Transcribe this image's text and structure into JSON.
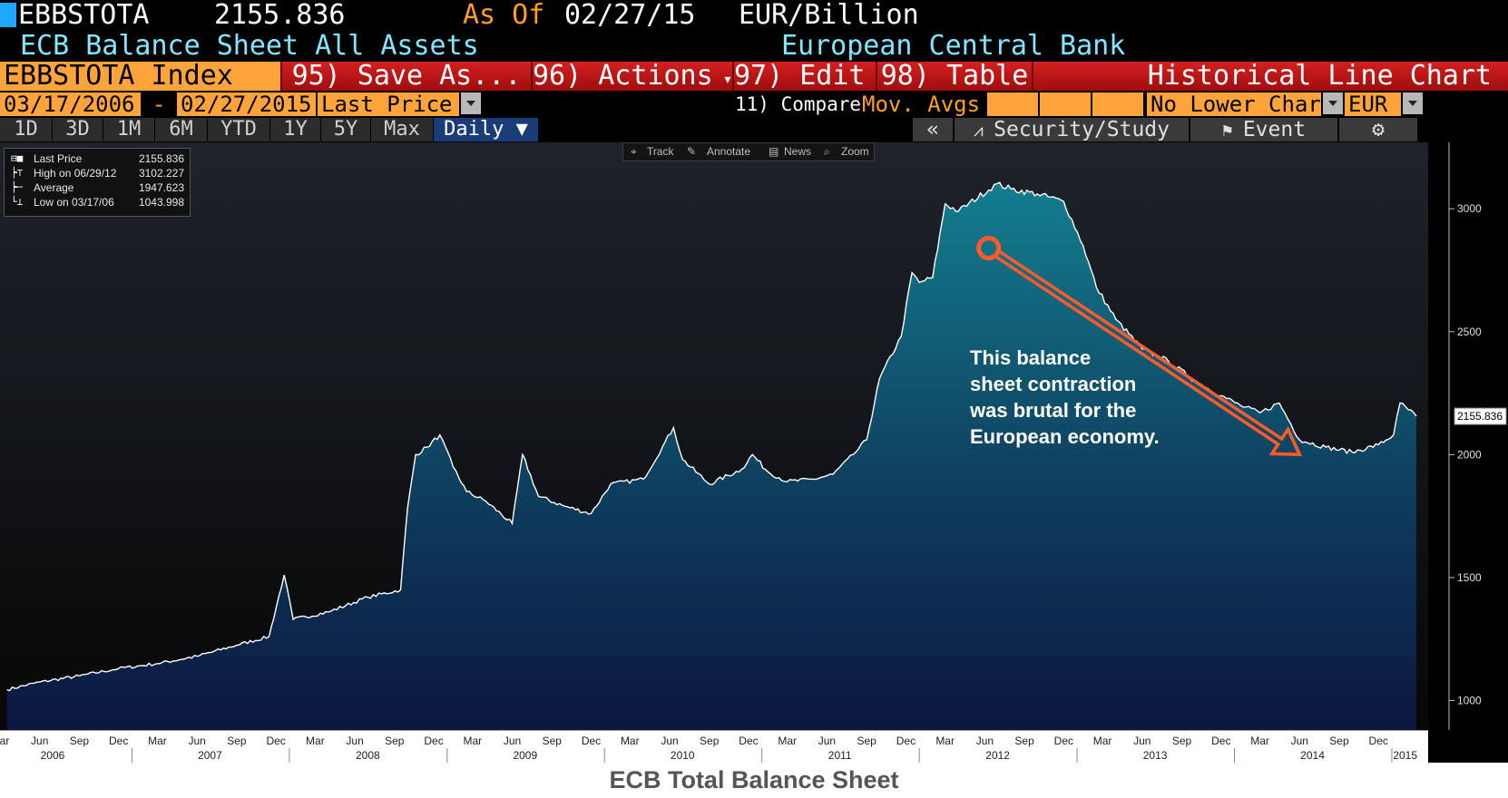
{
  "header": {
    "ticker": "EBBSTOTA",
    "last_value": "2155.836",
    "as_of_label": "As Of",
    "as_of_date": "02/27/15",
    "units": "EUR/Billion",
    "description": "ECB Balance Sheet All Assets",
    "source": "European Central Bank"
  },
  "menu": {
    "index_label": "EBBSTOTA Index",
    "save_as": "95) Save As...",
    "actions": "96) Actions",
    "edit": "97) Edit",
    "table": "98) Table",
    "chart_type": "Historical Line Chart"
  },
  "controls": {
    "start_date": "03/17/2006",
    "dash": "-",
    "end_date": "02/27/2015",
    "field": "Last Price",
    "compare_label": "11) Compare",
    "mov_avgs": "Mov. Avgs",
    "lower_chart": "No Lower Chart",
    "currency": "EUR"
  },
  "tabs": [
    "1D",
    "3D",
    "1M",
    "6M",
    "YTD",
    "1Y",
    "5Y",
    "Max"
  ],
  "frequency": "Daily",
  "right_tools": {
    "collapse": "«",
    "security_study": "Security/Study",
    "event": "Event"
  },
  "chart_toolbar": [
    "Track",
    "Annotate",
    "News",
    "Zoom"
  ],
  "legend": [
    {
      "label": "Last Price",
      "value": "2155.836"
    },
    {
      "label": "High on 06/29/12",
      "value": "3102.227"
    },
    {
      "label": "Average",
      "value": "1947.623"
    },
    {
      "label": "Low on 03/17/06",
      "value": "1043.998"
    }
  ],
  "annotation": [
    "This balance",
    "sheet contraction",
    "was brutal for the",
    "European economy."
  ],
  "caption": "ECB Total Balance Sheet",
  "colors": {
    "accent_orange": "#ff9f1a",
    "menu_red": "#d42020",
    "cursor_blue": "#1ea7ff",
    "arrow": "#ff5a2a",
    "area_top": "#137e90",
    "area_bottom": "#0b1640"
  },
  "chart_data": {
    "type": "area",
    "ylim": [
      880,
      3270
    ],
    "yticks": [
      1000,
      1500,
      2000,
      2500,
      3000
    ],
    "last_value_label": "2155.836",
    "last_value": 2155.836,
    "x_range": [
      "2006-03-01",
      "2015-03-01"
    ],
    "x_month_ticks": [
      {
        "date": "2006-03",
        "label": "Mar"
      },
      {
        "date": "2006-06",
        "label": "Jun"
      },
      {
        "date": "2006-09",
        "label": "Sep"
      },
      {
        "date": "2006-12",
        "label": "Dec"
      },
      {
        "date": "2007-03",
        "label": "Mar"
      },
      {
        "date": "2007-06",
        "label": "Jun"
      },
      {
        "date": "2007-09",
        "label": "Sep"
      },
      {
        "date": "2007-12",
        "label": "Dec"
      },
      {
        "date": "2008-03",
        "label": "Mar"
      },
      {
        "date": "2008-06",
        "label": "Jun"
      },
      {
        "date": "2008-09",
        "label": "Sep"
      },
      {
        "date": "2008-12",
        "label": "Dec"
      },
      {
        "date": "2009-03",
        "label": "Mar"
      },
      {
        "date": "2009-06",
        "label": "Jun"
      },
      {
        "date": "2009-09",
        "label": "Sep"
      },
      {
        "date": "2009-12",
        "label": "Dec"
      },
      {
        "date": "2010-03",
        "label": "Mar"
      },
      {
        "date": "2010-06",
        "label": "Jun"
      },
      {
        "date": "2010-09",
        "label": "Sep"
      },
      {
        "date": "2010-12",
        "label": "Dec"
      },
      {
        "date": "2011-03",
        "label": "Mar"
      },
      {
        "date": "2011-06",
        "label": "Jun"
      },
      {
        "date": "2011-09",
        "label": "Sep"
      },
      {
        "date": "2011-12",
        "label": "Dec"
      },
      {
        "date": "2012-03",
        "label": "Mar"
      },
      {
        "date": "2012-06",
        "label": "Jun"
      },
      {
        "date": "2012-09",
        "label": "Sep"
      },
      {
        "date": "2012-12",
        "label": "Dec"
      },
      {
        "date": "2013-03",
        "label": "Mar"
      },
      {
        "date": "2013-06",
        "label": "Jun"
      },
      {
        "date": "2013-09",
        "label": "Sep"
      },
      {
        "date": "2013-12",
        "label": "Dec"
      },
      {
        "date": "2014-03",
        "label": "Mar"
      },
      {
        "date": "2014-06",
        "label": "Jun"
      },
      {
        "date": "2014-09",
        "label": "Sep"
      },
      {
        "date": "2014-12",
        "label": "Dec"
      }
    ],
    "x_year_labels": [
      {
        "date": "2006-07",
        "label": "2006"
      },
      {
        "date": "2007-07",
        "label": "2007"
      },
      {
        "date": "2008-07",
        "label": "2008"
      },
      {
        "date": "2009-07",
        "label": "2009"
      },
      {
        "date": "2010-07",
        "label": "2010"
      },
      {
        "date": "2011-07",
        "label": "2011"
      },
      {
        "date": "2012-07",
        "label": "2012"
      },
      {
        "date": "2013-07",
        "label": "2013"
      },
      {
        "date": "2014-07",
        "label": "2014"
      },
      {
        "date": "2015-02",
        "label": "2015"
      }
    ],
    "x_year_separators": [
      "2007-01",
      "2008-01",
      "2009-01",
      "2010-01",
      "2011-01",
      "2012-01",
      "2013-01",
      "2014-01",
      "2015-01"
    ],
    "series": [
      {
        "points": [
          [
            "2006-03-17",
            1044
          ],
          [
            "2006-06-01",
            1075
          ],
          [
            "2006-09-01",
            1100
          ],
          [
            "2006-12-01",
            1130
          ],
          [
            "2007-03-01",
            1150
          ],
          [
            "2007-06-01",
            1180
          ],
          [
            "2007-09-01",
            1225
          ],
          [
            "2007-11-15",
            1260
          ],
          [
            "2007-12-20",
            1510
          ],
          [
            "2008-01-10",
            1330
          ],
          [
            "2008-04-01",
            1360
          ],
          [
            "2008-07-01",
            1420
          ],
          [
            "2008-09-15",
            1450
          ],
          [
            "2008-10-01",
            1780
          ],
          [
            "2008-10-20",
            2000
          ],
          [
            "2008-11-15",
            2030
          ],
          [
            "2008-12-15",
            2080
          ],
          [
            "2009-01-15",
            1950
          ],
          [
            "2009-02-15",
            1850
          ],
          [
            "2009-04-01",
            1810
          ],
          [
            "2009-06-01",
            1720
          ],
          [
            "2009-06-25",
            2000
          ],
          [
            "2009-08-01",
            1830
          ],
          [
            "2009-10-01",
            1790
          ],
          [
            "2009-12-01",
            1760
          ],
          [
            "2010-01-15",
            1880
          ],
          [
            "2010-04-01",
            1900
          ],
          [
            "2010-05-15",
            2030
          ],
          [
            "2010-06-10",
            2110
          ],
          [
            "2010-07-01",
            1980
          ],
          [
            "2010-09-01",
            1880
          ],
          [
            "2010-11-15",
            1940
          ],
          [
            "2010-12-10",
            2000
          ],
          [
            "2011-01-15",
            1930
          ],
          [
            "2011-03-01",
            1890
          ],
          [
            "2011-05-01",
            1900
          ],
          [
            "2011-06-15",
            1920
          ],
          [
            "2011-08-01",
            2000
          ],
          [
            "2011-09-01",
            2060
          ],
          [
            "2011-10-01",
            2310
          ],
          [
            "2011-11-20",
            2480
          ],
          [
            "2011-12-15",
            2740
          ],
          [
            "2012-01-01",
            2700
          ],
          [
            "2012-02-01",
            2720
          ],
          [
            "2012-03-01",
            3020
          ],
          [
            "2012-04-01",
            2990
          ],
          [
            "2012-06-29",
            3102
          ],
          [
            "2012-08-01",
            3080
          ],
          [
            "2012-10-01",
            3060
          ],
          [
            "2012-12-01",
            3030
          ],
          [
            "2013-01-15",
            2850
          ],
          [
            "2013-02-15",
            2680
          ],
          [
            "2013-04-01",
            2550
          ],
          [
            "2013-06-01",
            2430
          ],
          [
            "2013-08-01",
            2380
          ],
          [
            "2013-10-01",
            2300
          ],
          [
            "2013-12-01",
            2240
          ],
          [
            "2014-01-15",
            2200
          ],
          [
            "2014-03-01",
            2170
          ],
          [
            "2014-04-15",
            2210
          ],
          [
            "2014-06-01",
            2060
          ],
          [
            "2014-08-01",
            2030
          ],
          [
            "2014-10-01",
            2010
          ],
          [
            "2014-12-01",
            2040
          ],
          [
            "2015-01-05",
            2080
          ],
          [
            "2015-01-20",
            2210
          ],
          [
            "2015-02-27",
            2156
          ]
        ]
      }
    ]
  }
}
